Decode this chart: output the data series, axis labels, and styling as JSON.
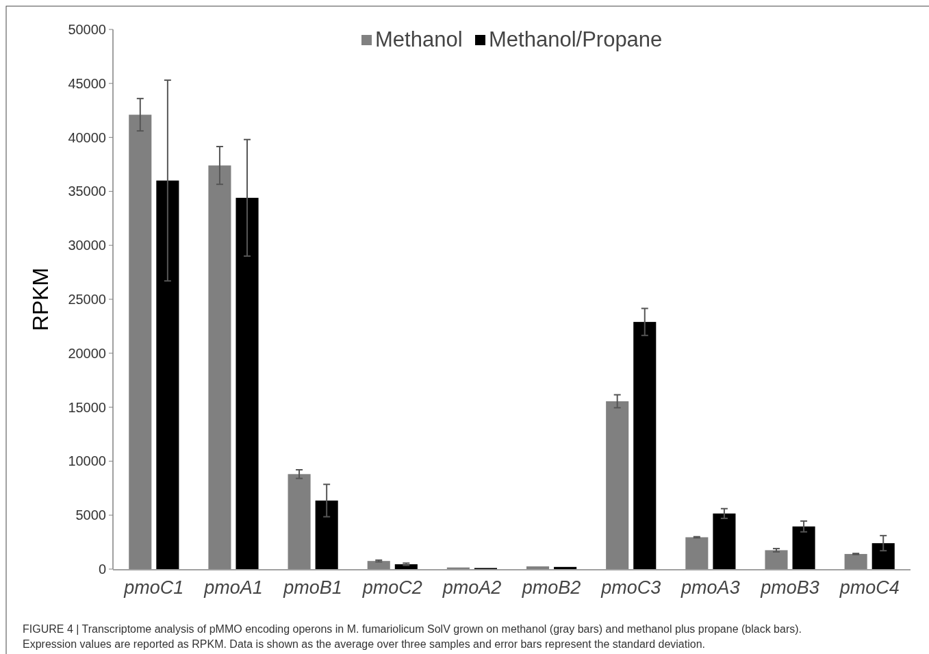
{
  "chart_data": {
    "type": "bar",
    "ylabel": "RPKM",
    "categories": [
      "pmoC1",
      "pmoA1",
      "pmoB1",
      "pmoC2",
      "pmoA2",
      "pmoB2",
      "pmoC3",
      "pmoA3",
      "pmoB3",
      "pmoC4"
    ],
    "series": [
      {
        "name": "Methanol",
        "color": "#808080",
        "values": [
          42100,
          37400,
          8800,
          750,
          150,
          250,
          15550,
          2950,
          1750,
          1400
        ],
        "errors": [
          1500,
          1750,
          400,
          80,
          null,
          null,
          600,
          50,
          150,
          50
        ]
      },
      {
        "name": "Methanol/Propane",
        "color": "#000000",
        "values": [
          36000,
          34400,
          6350,
          450,
          100,
          200,
          22900,
          5150,
          3950,
          2400
        ],
        "errors": [
          9300,
          5400,
          1500,
          100,
          null,
          null,
          1250,
          450,
          500,
          700
        ]
      }
    ],
    "ylim": [
      0,
      50000
    ],
    "yticks": [
      0,
      5000,
      10000,
      15000,
      20000,
      25000,
      30000,
      35000,
      40000,
      45000,
      50000
    ],
    "grid": false,
    "legend": "top",
    "annotations": [
      "FIGURE 4 | Transcriptome analysis of pMMO encoding operons in M. fumariolicum SolV grown on methanol (gray bars) and methanol plus propane (black bars).",
      "Expression values are reported as RPKM. Data is shown as the average over three samples and error bars represent the standard deviation."
    ]
  }
}
